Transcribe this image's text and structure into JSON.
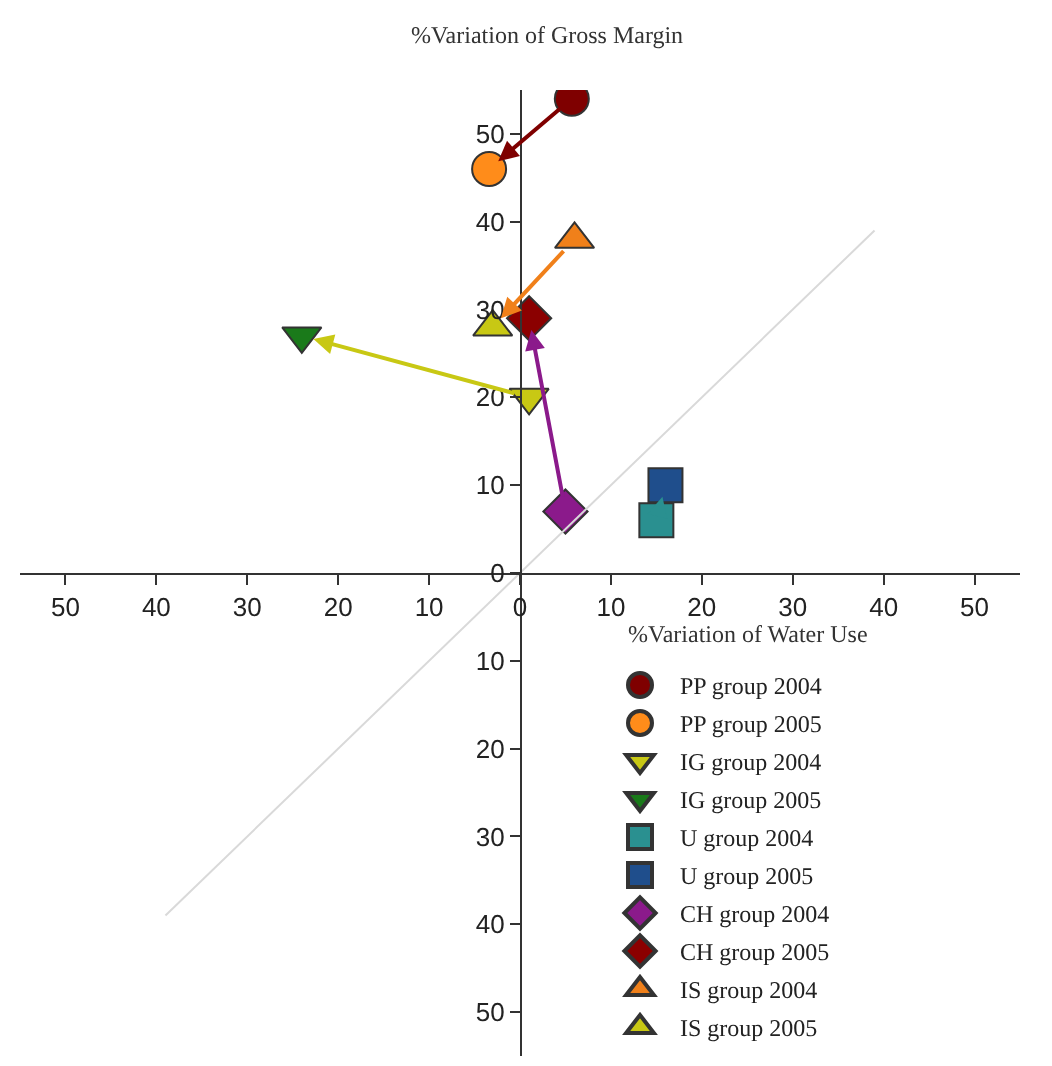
{
  "chart_data": {
    "type": "scatter",
    "title": "%Variation of Gross Margin",
    "xlabel": "%Variation of Water Use",
    "xlim": [
      -55,
      55
    ],
    "ylim": [
      -55,
      55
    ],
    "xticks": [
      {
        "value": -50,
        "label": "50"
      },
      {
        "value": -40,
        "label": "40"
      },
      {
        "value": -30,
        "label": "30"
      },
      {
        "value": -20,
        "label": "20"
      },
      {
        "value": -10,
        "label": "10"
      },
      0,
      10,
      20,
      30,
      40,
      50
    ],
    "yticks": [
      {
        "value": -50,
        "label": "50"
      },
      {
        "value": -40,
        "label": "40"
      },
      {
        "value": -30,
        "label": "30"
      },
      {
        "value": -20,
        "label": "20"
      },
      {
        "value": -10,
        "label": "10"
      },
      0,
      10,
      20,
      30,
      40,
      50
    ],
    "legend": "bottom right",
    "series": [
      {
        "name": "PP group 2004",
        "color": "#7f0000",
        "marker": "circle",
        "x": [
          5.7
        ],
        "values": [
          54
        ]
      },
      {
        "name": "PP group 2005",
        "color": "#ff8c1a",
        "marker": "circle",
        "x": [
          -3.4
        ],
        "values": [
          46
        ]
      },
      {
        "name": "IG group 2004",
        "color": "#c8c814",
        "marker": "triangle-down",
        "x": [
          1
        ],
        "values": [
          20
        ]
      },
      {
        "name": "IG group 2005",
        "color": "#1a7a1a",
        "marker": "triangle-down",
        "x": [
          -24
        ],
        "values": [
          27
        ]
      },
      {
        "name": "U group 2004",
        "color": "#2a9090",
        "marker": "square",
        "x": [
          15
        ],
        "values": [
          6
        ]
      },
      {
        "name": "U group 2005",
        "color": "#1f4e8c",
        "marker": "square",
        "x": [
          16
        ],
        "values": [
          10
        ]
      },
      {
        "name": "CH group 2004",
        "color": "#8b1a8b",
        "marker": "diamond",
        "x": [
          5
        ],
        "values": [
          7
        ]
      },
      {
        "name": "CH group 2005",
        "color": "#8b0000",
        "marker": "diamond",
        "x": [
          1
        ],
        "values": [
          29
        ]
      },
      {
        "name": "IS group 2004",
        "color": "#f0801a",
        "marker": "triangle",
        "x": [
          6
        ],
        "values": [
          38
        ]
      },
      {
        "name": "IS group 2005",
        "color": "#c8c814",
        "marker": "triangle",
        "x": [
          -3
        ],
        "values": [
          28
        ]
      },
      {
        "type": "line",
        "color": "#d9d9d9",
        "x": [
          -39,
          39
        ],
        "values": [
          -39,
          39
        ]
      }
    ]
  }
}
